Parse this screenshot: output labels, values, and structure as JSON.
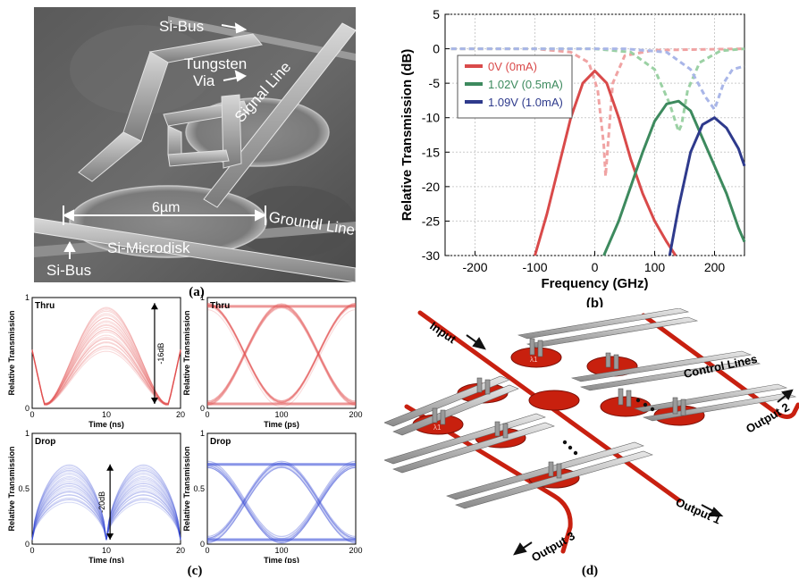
{
  "panel_labels": {
    "a": "(a)",
    "b": "(b)",
    "c": "(c)",
    "d": "(d)"
  },
  "sem": {
    "si_bus_top": "Si-Bus",
    "tungsten_line1": "Tungsten",
    "tungsten_line2": "Via",
    "signal_line": "Signal Line",
    "dimension": "6µm",
    "ground_line": "Groundl Line",
    "microdisk": "Si-Microdisk",
    "si_bus_bottom": "Si-Bus"
  },
  "chart_data": [
    {
      "type": "line",
      "panel": "b",
      "xlabel": "Frequency (GHz)",
      "ylabel": "Relative Transmission (dB)",
      "xlim": [
        -250,
        250
      ],
      "ylim": [
        -30,
        5
      ],
      "xticks": [
        -200,
        -100,
        0,
        100,
        200
      ],
      "yticks": [
        5,
        0,
        -5,
        -10,
        -15,
        -20,
        -25,
        -30
      ],
      "legend_position": "top-left",
      "series": [
        {
          "name": "0V (0mA)",
          "color": "#d94a4a",
          "kind": "drop",
          "x": [
            -100,
            -80,
            -60,
            -40,
            -20,
            0,
            20,
            40,
            60,
            80,
            100,
            120,
            135
          ],
          "y": [
            -30,
            -24,
            -17,
            -10,
            -5,
            -3.2,
            -5,
            -10,
            -16,
            -21,
            -25,
            -28,
            -30
          ]
        },
        {
          "name": "0V (0mA)",
          "color": "#f0a3a3",
          "kind": "thru",
          "x": [
            -240,
            -100,
            -40,
            -10,
            5,
            15,
            18,
            22,
            30,
            50,
            100,
            250
          ],
          "y": [
            0,
            0,
            -0.5,
            -2,
            -6,
            -14,
            -18.5,
            -14,
            -5,
            -1,
            -0.2,
            0
          ]
        },
        {
          "name": "1.02V (0.5mA)",
          "color": "#3d8a5e",
          "kind": "drop",
          "x": [
            15,
            40,
            60,
            80,
            100,
            120,
            140,
            160,
            180,
            200,
            220,
            240,
            250
          ],
          "y": [
            -30,
            -25,
            -20,
            -15,
            -10.5,
            -8,
            -7.6,
            -9,
            -13,
            -17,
            -21,
            -26,
            -28
          ]
        },
        {
          "name": "1.02V (0.5mA)",
          "color": "#9bd1a4",
          "kind": "thru",
          "x": [
            -240,
            0,
            60,
            100,
            125,
            140,
            145,
            155,
            175,
            210,
            250
          ],
          "y": [
            0,
            0,
            -0.5,
            -3,
            -8,
            -12,
            -11,
            -6,
            -2,
            -0.3,
            0
          ]
        },
        {
          "name": "1.09V (1.0mA)",
          "color": "#2e3a8c",
          "kind": "drop",
          "x": [
            125,
            140,
            160,
            180,
            200,
            220,
            240,
            250
          ],
          "y": [
            -30,
            -23,
            -15,
            -11,
            -10,
            -11.5,
            -14.5,
            -17
          ]
        },
        {
          "name": "1.09V (1.0mA)",
          "color": "#a9b6e8",
          "kind": "thru",
          "x": [
            -240,
            50,
            120,
            160,
            185,
            200,
            215,
            230,
            250
          ],
          "y": [
            0,
            0,
            -0.5,
            -3,
            -7,
            -8.8,
            -5,
            -3,
            -2.5
          ]
        }
      ]
    },
    {
      "type": "line",
      "panel": "c1",
      "title": "Thru",
      "xlabel": "Time (ns)",
      "ylabel": "Relative Transmission",
      "xlim": [
        0,
        20
      ],
      "ylim": [
        0,
        1
      ],
      "xticks": [
        0,
        10,
        20
      ],
      "yticks": [
        0,
        1
      ],
      "annotation": "-16dB",
      "color": "#e25454"
    },
    {
      "type": "line",
      "panel": "c2",
      "title": "Thru",
      "xlabel": "Time (ps)",
      "ylabel": "Relative Transmission",
      "xlim": [
        0,
        200
      ],
      "ylim": [
        0,
        1
      ],
      "xticks": [
        0,
        100,
        200
      ],
      "yticks": [
        0,
        1
      ],
      "color": "#e25454"
    },
    {
      "type": "line",
      "panel": "c3",
      "title": "Drop",
      "xlabel": "Time (ns)",
      "ylabel": "Relative Transmission",
      "xlim": [
        0,
        20
      ],
      "ylim": [
        0,
        1
      ],
      "xticks": [
        0,
        10,
        20
      ],
      "yticks": [
        0,
        0.5,
        1
      ],
      "annotation": "-20dB",
      "color": "#3b4fd8"
    },
    {
      "type": "line",
      "panel": "c4",
      "title": "Drop",
      "xlabel": "Time (ps)",
      "ylabel": "Relative Transmission",
      "xlim": [
        0,
        200
      ],
      "ylim": [
        0,
        1
      ],
      "xticks": [
        0,
        100,
        200
      ],
      "yticks": [
        0,
        0.5,
        1
      ],
      "color": "#3b4fd8"
    }
  ],
  "schematic": {
    "input": "Input",
    "control_lines": "Control Lines",
    "output1": "Output 1",
    "output2": "Output 2",
    "output3": "Output 3",
    "lambda1": "λ1"
  }
}
